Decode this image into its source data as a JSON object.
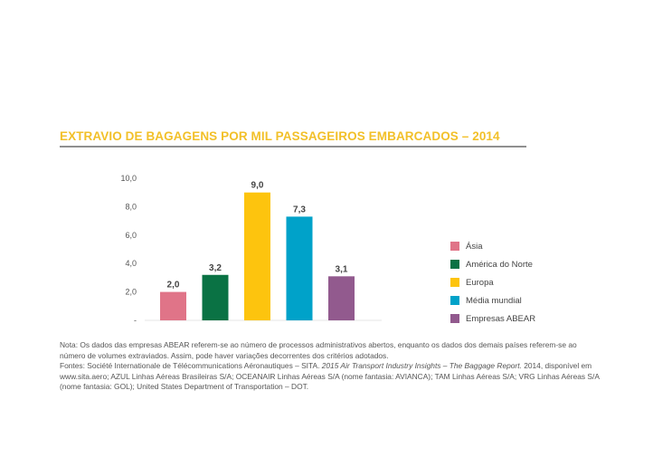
{
  "colors": {
    "title": "#F2C029",
    "axis_text": "#555555",
    "label_text": "#444444"
  },
  "chart_data": {
    "type": "bar",
    "title": "EXTRAVIO DE BAGAGENS POR MIL PASSAGEIROS EMBARCADOS – 2014",
    "categories": [
      "Ásia",
      "América do Norte",
      "Europa",
      "Média mundial",
      "Empresas ABEAR"
    ],
    "values": [
      2.0,
      3.2,
      9.0,
      7.3,
      3.1
    ],
    "value_labels": [
      "2,0",
      "3,2",
      "9,0",
      "7,3",
      "3,1"
    ],
    "colors": [
      "#E07488",
      "#0A7244",
      "#FDC40E",
      "#00A2C9",
      "#925A8E"
    ],
    "ylim": [
      0,
      10
    ],
    "yticks": [
      {
        "value": 0,
        "label": "-"
      },
      {
        "value": 2,
        "label": "2,0"
      },
      {
        "value": 4,
        "label": "4,0"
      },
      {
        "value": 6,
        "label": "6,0"
      },
      {
        "value": 8,
        "label": "8,0"
      },
      {
        "value": 10,
        "label": "10,0"
      }
    ],
    "xlabel": "",
    "ylabel": "",
    "grid": false,
    "legend_position": "right"
  },
  "notes": {
    "nota": "Nota: Os dados das empresas ABEAR referem-se ao número de processos administrativos abertos, enquanto os dados dos demais países referem-se ao número de volumes extraviados. Assim, pode haver variações decorrentes dos critérios adotados.",
    "fontes_prefix": "Fontes: Société Internationale de Télécommunications Aéronautiques – SITA.",
    "fontes_italic": "2015 Air Transport Industry Insights – The Baggage Report.",
    "fontes_suffix": "2014, disponível em www.sita.aero; AZUL Linhas Aéreas Brasileiras S/A; OCEANAIR Linhas Aéreas S/A (nome fantasia: AVIANCA); TAM Linhas Aéreas S/A; VRG Linhas Aéreas S/A (nome fantasia: GOL); United States Department of Transportation – DOT."
  }
}
